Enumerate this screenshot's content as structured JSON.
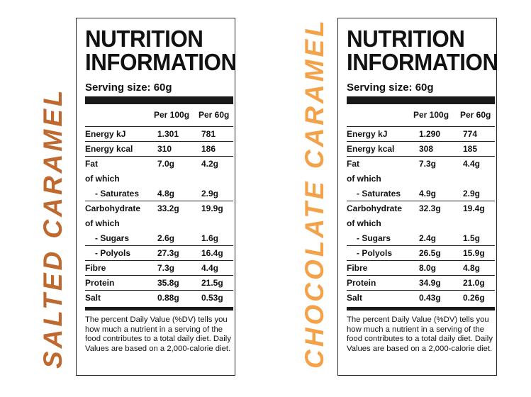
{
  "flavors": [
    {
      "name": "SALTED CARAMEL",
      "color": "#c0692f"
    },
    {
      "name": "CHOCOLATE CARAMEL",
      "color": "#f4a24a"
    }
  ],
  "label": {
    "title_line1": "NUTRITION",
    "title_line2": "INFORMATION",
    "serving_size": "Serving size: 60g",
    "col1_header": "Per 100g",
    "col2_header": "Per 60g",
    "footnote": "The percent Daily Value (%DV) tells you how much a nutrient in a serving of the food contributes to a total daily diet. Daily Values are based on a 2,000-calorie diet."
  },
  "panels": [
    {
      "rows": [
        {
          "label": "Energy kJ",
          "per100": "1.301",
          "per60": "781"
        },
        {
          "label": "Energy kcal",
          "per100": "310",
          "per60": "186"
        },
        {
          "label": "Fat",
          "per100": "7.0g",
          "per60": "4.2g"
        },
        {
          "label": "of which",
          "per100": "",
          "per60": ""
        },
        {
          "label": "- Saturates",
          "per100": "4.8g",
          "per60": "2.9g"
        },
        {
          "label": "Carbohydrate",
          "per100": "33.2g",
          "per60": "19.9g"
        },
        {
          "label": "of which",
          "per100": "",
          "per60": ""
        },
        {
          "label": "- Sugars",
          "per100": "2.6g",
          "per60": "1.6g"
        },
        {
          "label": "- Polyols",
          "per100": "27.3g",
          "per60": "16.4g"
        },
        {
          "label": "Fibre",
          "per100": "7.3g",
          "per60": "4.4g"
        },
        {
          "label": "Protein",
          "per100": "35.8g",
          "per60": "21.5g"
        },
        {
          "label": "Salt",
          "per100": "0.88g",
          "per60": "0.53g"
        }
      ]
    },
    {
      "rows": [
        {
          "label": "Energy kJ",
          "per100": "1.290",
          "per60": "774"
        },
        {
          "label": "Energy kcal",
          "per100": "308",
          "per60": "185"
        },
        {
          "label": "Fat",
          "per100": "7.3g",
          "per60": "4.4g"
        },
        {
          "label": "of which",
          "per100": "",
          "per60": ""
        },
        {
          "label": "- Saturates",
          "per100": "4.9g",
          "per60": "2.9g"
        },
        {
          "label": "Carbohydrate",
          "per100": "32.3g",
          "per60": "19.4g"
        },
        {
          "label": "of which",
          "per100": "",
          "per60": ""
        },
        {
          "label": "- Sugars",
          "per100": "2.4g",
          "per60": "1.5g"
        },
        {
          "label": "- Polyols",
          "per100": "26.5g",
          "per60": "15.9g"
        },
        {
          "label": "Fibre",
          "per100": "8.0g",
          "per60": "4.8g"
        },
        {
          "label": "Protein",
          "per100": "34.9g",
          "per60": "21.0g"
        },
        {
          "label": "Salt",
          "per100": "0.43g",
          "per60": "0.26g"
        }
      ]
    }
  ]
}
